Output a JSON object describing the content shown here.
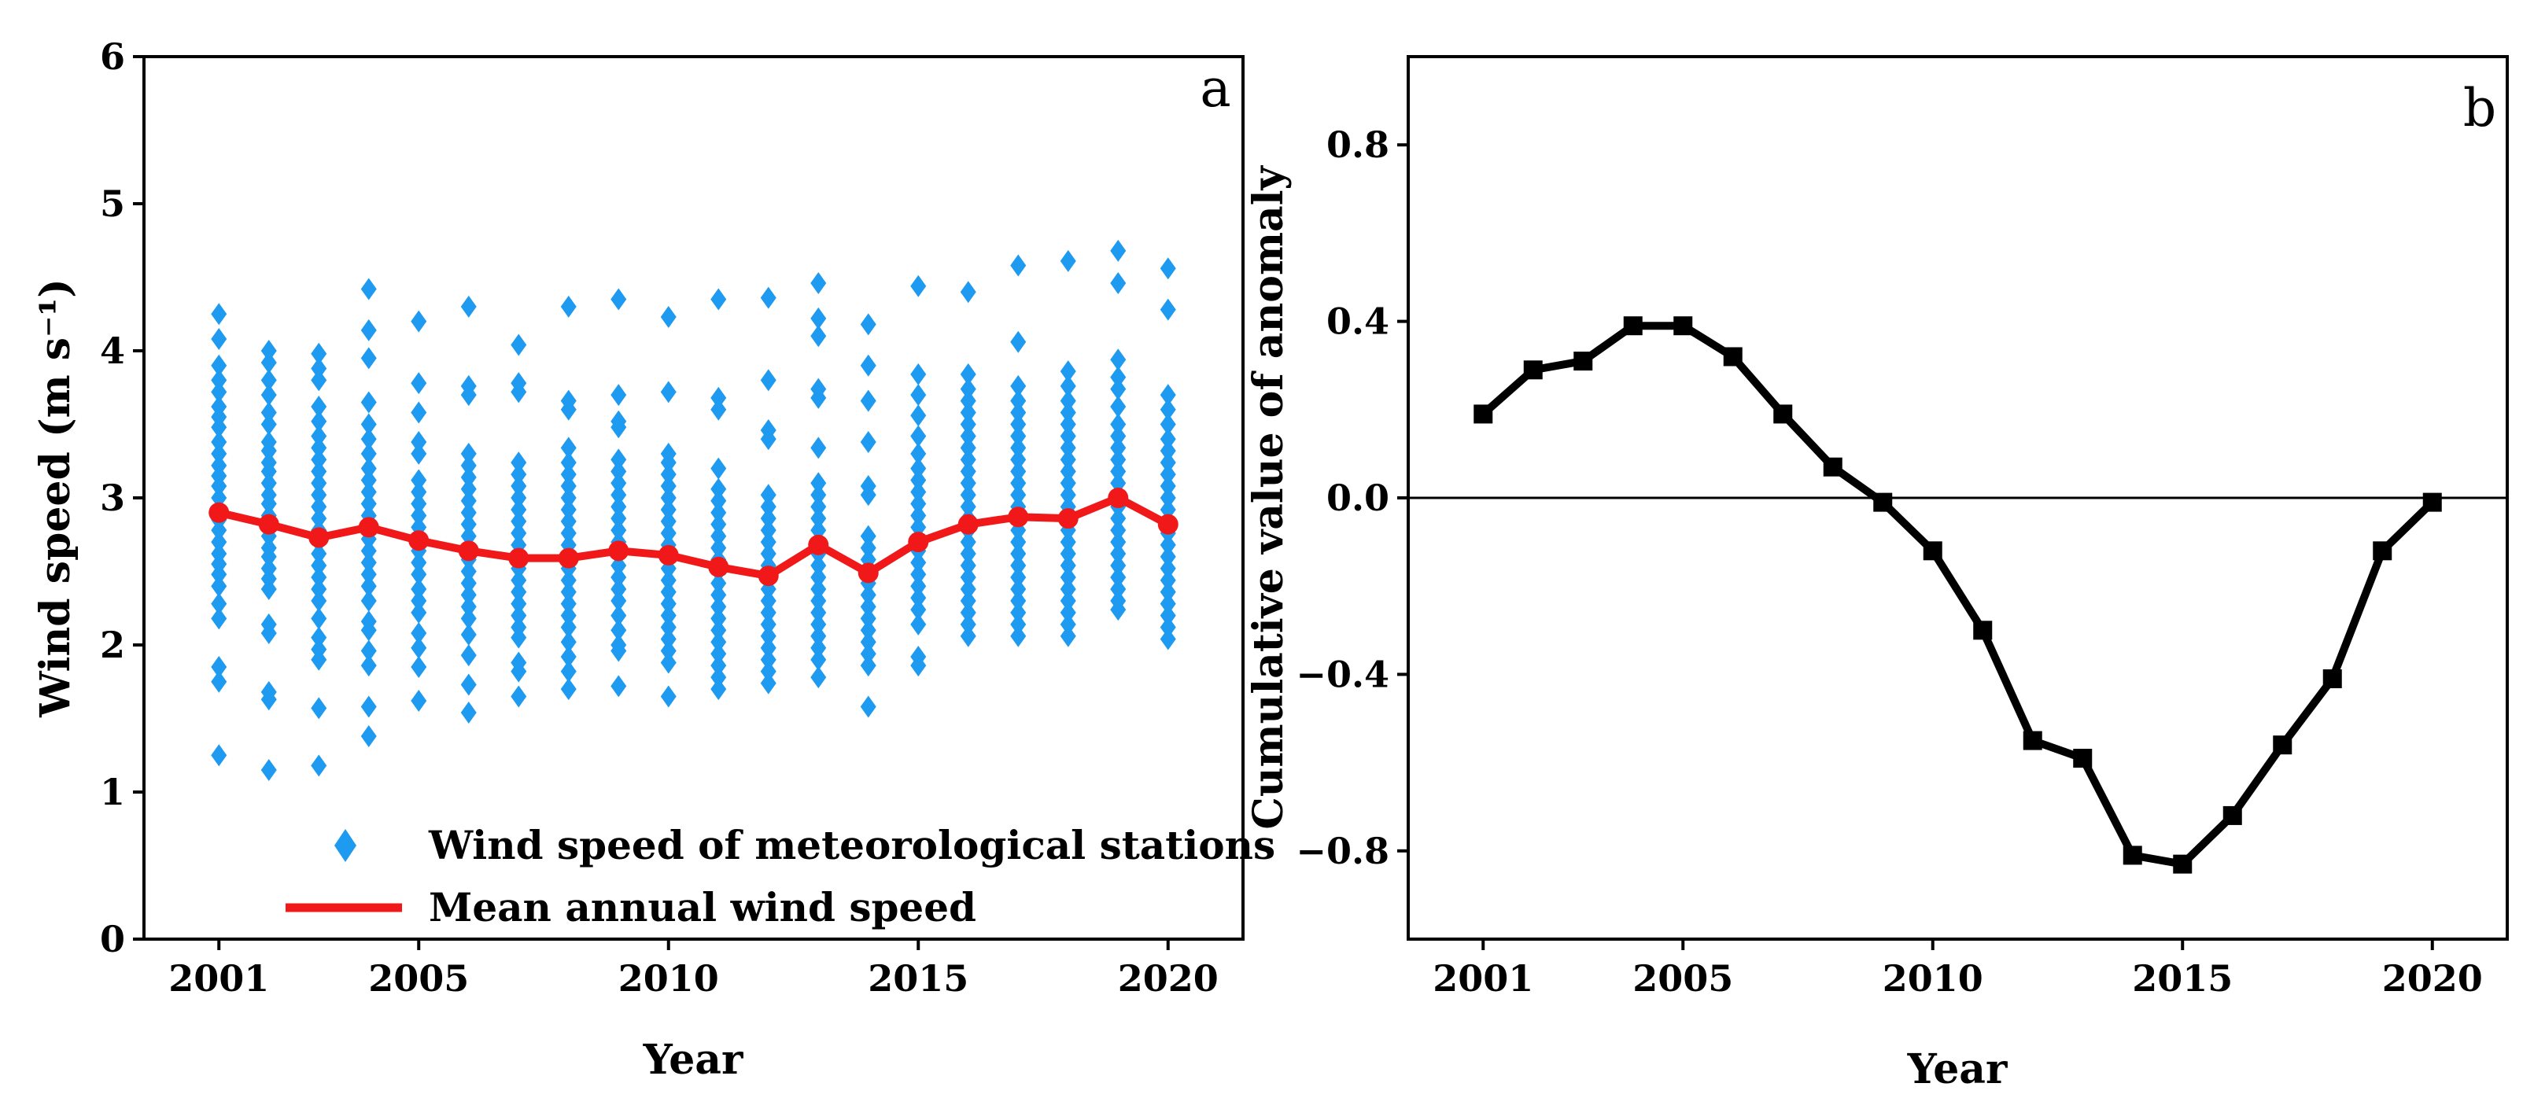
{
  "chart_data": [
    {
      "panel": "a",
      "type": "scatter",
      "xlabel": "Year",
      "ylabel": "Wind speed (m s⁻¹)",
      "xlim": [
        1999.5,
        2021.5
      ],
      "ylim": [
        0,
        6
      ],
      "xticks": [
        2001,
        2005,
        2010,
        2015,
        2020
      ],
      "yticks": [
        0,
        1,
        2,
        3,
        4,
        5,
        6
      ],
      "legend_position": "bottom-right",
      "series": [
        {
          "name": "Wind speed of meteorological stations",
          "kind": "scatter",
          "marker": "diamond",
          "color": "#1e9bf0",
          "points": [
            {
              "year": 2001,
              "values": [
                1.25,
                1.75,
                1.85,
                2.18,
                2.28,
                2.4,
                2.48,
                2.55,
                2.62,
                2.7,
                2.78,
                2.85,
                2.92,
                3.0,
                3.08,
                3.15,
                3.22,
                3.3,
                3.38,
                3.48,
                3.55,
                3.62,
                3.72,
                3.8,
                3.9,
                4.08,
                4.25
              ]
            },
            {
              "year": 2002,
              "values": [
                1.15,
                1.63,
                1.68,
                2.08,
                2.14,
                2.38,
                2.45,
                2.52,
                2.6,
                2.66,
                2.74,
                2.8,
                2.88,
                2.96,
                3.02,
                3.1,
                3.18,
                3.24,
                3.32,
                3.38,
                3.5,
                3.58,
                3.7,
                3.8,
                3.92,
                4.0
              ]
            },
            {
              "year": 2003,
              "values": [
                1.18,
                1.57,
                1.9,
                1.97,
                2.05,
                2.18,
                2.3,
                2.38,
                2.46,
                2.54,
                2.62,
                2.7,
                2.78,
                2.86,
                2.94,
                3.02,
                3.1,
                3.18,
                3.26,
                3.34,
                3.42,
                3.52,
                3.62,
                3.8,
                3.88,
                3.98
              ]
            },
            {
              "year": 2004,
              "values": [
                1.38,
                1.58,
                1.86,
                1.96,
                2.1,
                2.16,
                2.3,
                2.4,
                2.48,
                2.56,
                2.64,
                2.72,
                2.8,
                2.88,
                2.96,
                3.04,
                3.12,
                3.2,
                3.3,
                3.4,
                3.5,
                3.65,
                3.95,
                4.14,
                4.42
              ]
            },
            {
              "year": 2005,
              "values": [
                1.62,
                1.85,
                1.98,
                2.08,
                2.22,
                2.3,
                2.38,
                2.48,
                2.56,
                2.64,
                2.72,
                2.8,
                2.88,
                2.96,
                3.04,
                3.12,
                3.3,
                3.38,
                3.58,
                3.78,
                4.2
              ]
            },
            {
              "year": 2006,
              "values": [
                1.54,
                1.73,
                1.93,
                2.07,
                2.18,
                2.26,
                2.34,
                2.42,
                2.5,
                2.58,
                2.66,
                2.74,
                2.82,
                2.9,
                2.98,
                3.06,
                3.14,
                3.22,
                3.3,
                3.7,
                3.76,
                4.3
              ]
            },
            {
              "year": 2007,
              "values": [
                1.65,
                1.82,
                1.88,
                2.05,
                2.12,
                2.2,
                2.28,
                2.36,
                2.44,
                2.52,
                2.6,
                2.68,
                2.76,
                2.84,
                2.92,
                3.0,
                3.08,
                3.16,
                3.24,
                3.72,
                3.78,
                4.04
              ]
            },
            {
              "year": 2008,
              "values": [
                1.7,
                1.82,
                1.92,
                2.02,
                2.12,
                2.2,
                2.28,
                2.36,
                2.44,
                2.52,
                2.6,
                2.68,
                2.76,
                2.84,
                2.92,
                3.0,
                3.08,
                3.16,
                3.24,
                3.34,
                3.6,
                3.66,
                4.3
              ]
            },
            {
              "year": 2009,
              "values": [
                1.72,
                1.96,
                2.0,
                2.1,
                2.2,
                2.3,
                2.38,
                2.46,
                2.54,
                2.62,
                2.7,
                2.78,
                2.86,
                2.94,
                3.02,
                3.1,
                3.18,
                3.26,
                3.48,
                3.52,
                3.7,
                4.35
              ]
            },
            {
              "year": 2010,
              "values": [
                1.65,
                1.88,
                1.96,
                2.04,
                2.12,
                2.2,
                2.28,
                2.36,
                2.44,
                2.52,
                2.6,
                2.68,
                2.76,
                2.84,
                2.92,
                3.0,
                3.08,
                3.16,
                3.24,
                3.3,
                3.72,
                4.23
              ]
            },
            {
              "year": 2011,
              "values": [
                1.7,
                1.78,
                1.86,
                1.94,
                2.02,
                2.1,
                2.18,
                2.26,
                2.34,
                2.42,
                2.5,
                2.58,
                2.66,
                2.74,
                2.82,
                2.9,
                2.98,
                3.06,
                3.2,
                3.6,
                3.68,
                4.35
              ]
            },
            {
              "year": 2012,
              "values": [
                1.74,
                1.82,
                1.9,
                1.98,
                2.06,
                2.14,
                2.22,
                2.3,
                2.38,
                2.46,
                2.54,
                2.62,
                2.7,
                2.78,
                2.86,
                2.94,
                3.02,
                3.4,
                3.46,
                3.8,
                4.36
              ]
            },
            {
              "year": 2013,
              "values": [
                1.78,
                1.9,
                1.98,
                2.06,
                2.14,
                2.22,
                2.3,
                2.38,
                2.46,
                2.54,
                2.62,
                2.7,
                2.78,
                2.86,
                2.94,
                3.02,
                3.1,
                3.34,
                3.68,
                3.74,
                4.1,
                4.22,
                4.46
              ]
            },
            {
              "year": 2014,
              "values": [
                1.58,
                1.86,
                1.94,
                2.02,
                2.1,
                2.18,
                2.26,
                2.34,
                2.42,
                2.5,
                2.58,
                2.66,
                2.74,
                3.02,
                3.08,
                3.38,
                3.66,
                3.9,
                4.18
              ]
            },
            {
              "year": 2015,
              "values": [
                1.86,
                1.92,
                2.14,
                2.24,
                2.32,
                2.4,
                2.48,
                2.56,
                2.64,
                2.72,
                2.8,
                2.88,
                2.96,
                3.04,
                3.12,
                3.2,
                3.3,
                3.42,
                3.56,
                3.7,
                3.84,
                4.44
              ]
            },
            {
              "year": 2016,
              "values": [
                2.06,
                2.14,
                2.22,
                2.3,
                2.38,
                2.46,
                2.54,
                2.62,
                2.7,
                2.78,
                2.86,
                2.94,
                3.02,
                3.1,
                3.18,
                3.26,
                3.34,
                3.42,
                3.5,
                3.58,
                3.66,
                3.74,
                3.84,
                4.4
              ]
            },
            {
              "year": 2017,
              "values": [
                2.06,
                2.14,
                2.22,
                2.3,
                2.38,
                2.46,
                2.54,
                2.62,
                2.7,
                2.78,
                2.86,
                2.94,
                3.02,
                3.1,
                3.18,
                3.26,
                3.34,
                3.42,
                3.5,
                3.58,
                3.66,
                3.76,
                4.06,
                4.58
              ]
            },
            {
              "year": 2018,
              "values": [
                2.06,
                2.14,
                2.22,
                2.3,
                2.38,
                2.46,
                2.54,
                2.62,
                2.7,
                2.78,
                2.86,
                2.94,
                3.02,
                3.1,
                3.18,
                3.26,
                3.34,
                3.42,
                3.5,
                3.58,
                3.66,
                3.76,
                3.86,
                4.61
              ]
            },
            {
              "year": 2019,
              "values": [
                2.24,
                2.3,
                2.38,
                2.46,
                2.54,
                2.62,
                2.7,
                2.78,
                2.86,
                2.94,
                3.02,
                3.1,
                3.18,
                3.26,
                3.34,
                3.42,
                3.5,
                3.62,
                3.74,
                3.82,
                3.94,
                4.46,
                4.68
              ]
            },
            {
              "year": 2020,
              "values": [
                2.04,
                2.12,
                2.2,
                2.28,
                2.36,
                2.44,
                2.52,
                2.6,
                2.68,
                2.76,
                2.84,
                2.92,
                3.0,
                3.08,
                3.16,
                3.24,
                3.32,
                3.4,
                3.5,
                3.6,
                3.7,
                4.28,
                4.56
              ]
            }
          ]
        },
        {
          "name": "Mean annual wind speed",
          "kind": "line",
          "marker": "circle",
          "color": "#f01818",
          "x": [
            2001,
            2002,
            2003,
            2004,
            2005,
            2006,
            2007,
            2008,
            2009,
            2010,
            2011,
            2012,
            2013,
            2014,
            2015,
            2016,
            2017,
            2018,
            2019,
            2020
          ],
          "values": [
            2.9,
            2.82,
            2.73,
            2.8,
            2.71,
            2.64,
            2.59,
            2.59,
            2.64,
            2.61,
            2.53,
            2.47,
            2.68,
            2.49,
            2.7,
            2.82,
            2.87,
            2.86,
            3.0,
            2.82
          ]
        }
      ]
    },
    {
      "panel": "b",
      "type": "line",
      "xlabel": "Year",
      "ylabel": "Cumulative value of anomaly",
      "xlim": [
        1999.5,
        2021.5
      ],
      "ylim": [
        -1.0,
        1.0
      ],
      "xticks": [
        2001,
        2005,
        2010,
        2015,
        2020
      ],
      "yticks": [
        -0.8,
        -0.4,
        0.0,
        0.4,
        0.8
      ],
      "ytick_labels": [
        "−0.8",
        "−0.4",
        "0.0",
        "0.4",
        "0.8"
      ],
      "reference_line": 0.0,
      "series": [
        {
          "name": "Cumulative value of anomaly",
          "marker": "square",
          "color": "#000000",
          "x": [
            2001,
            2002,
            2003,
            2004,
            2005,
            2006,
            2007,
            2008,
            2009,
            2010,
            2011,
            2012,
            2013,
            2014,
            2015,
            2016,
            2017,
            2018,
            2019,
            2020
          ],
          "values": [
            0.19,
            0.29,
            0.31,
            0.39,
            0.39,
            0.32,
            0.19,
            0.07,
            -0.01,
            -0.12,
            -0.3,
            -0.55,
            -0.59,
            -0.81,
            -0.83,
            -0.72,
            -0.56,
            -0.41,
            -0.12,
            -0.01
          ]
        }
      ]
    }
  ]
}
